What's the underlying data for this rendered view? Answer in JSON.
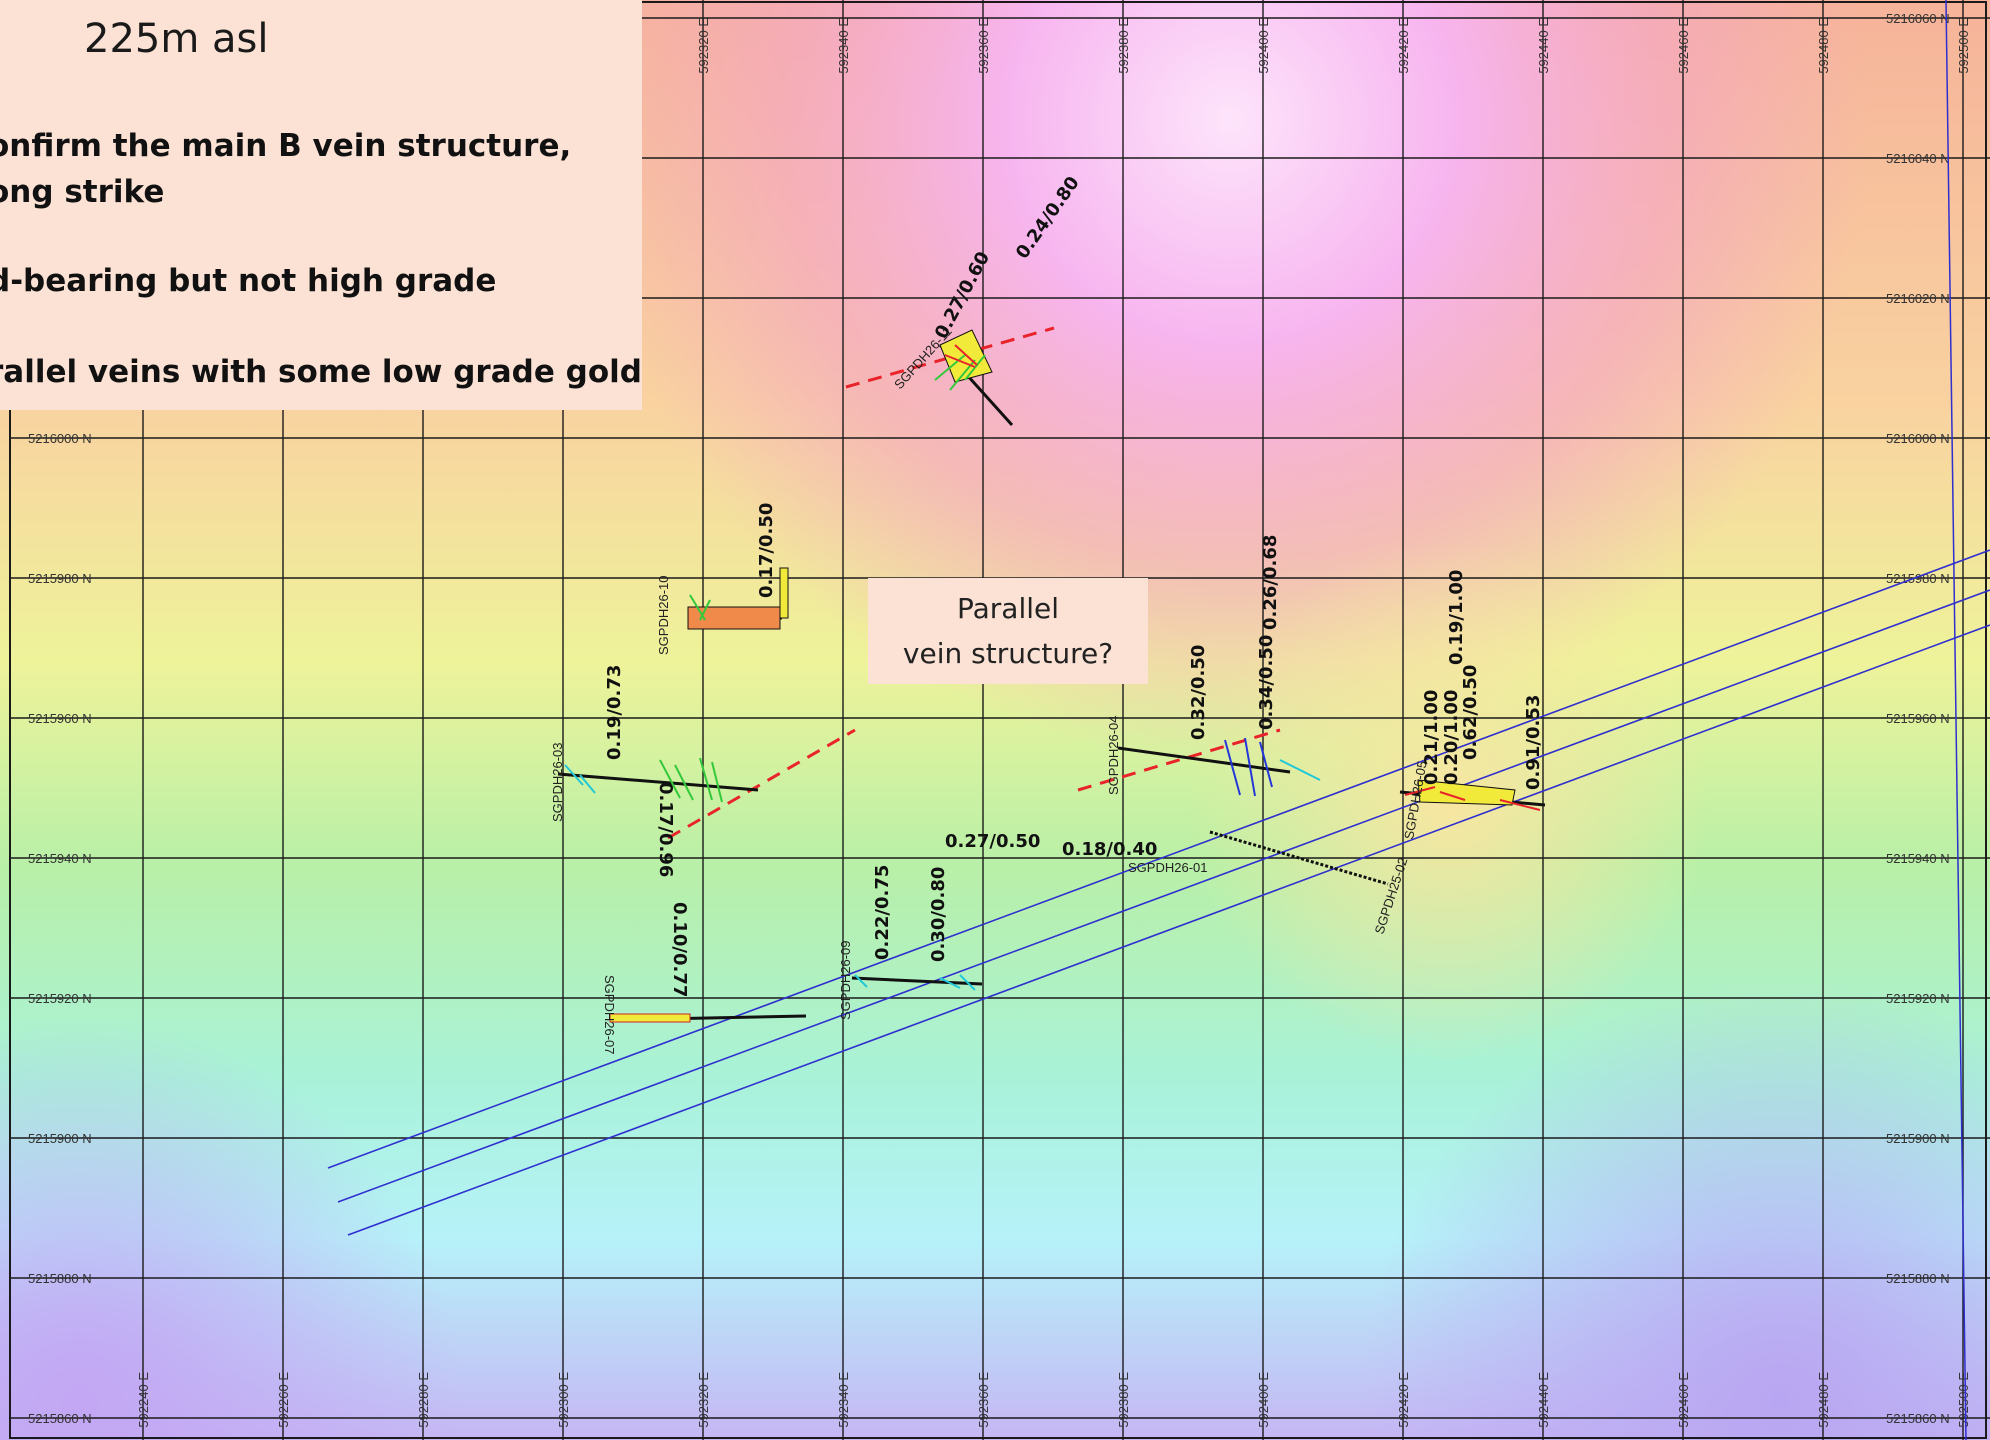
{
  "legend": {
    "elevation": "225m asl",
    "lines": [
      "onfirm the main B vein structure,",
      "ong strike",
      "d-bearing but not high grade",
      "rallel veins with some low grade gold"
    ]
  },
  "callout": {
    "line1": "Parallel",
    "line2": "vein structure?"
  },
  "map": {
    "easting_labels_top": [
      "592320 E",
      "592340 E",
      "592360 E",
      "592380 E",
      "592400 E",
      "592420 E",
      "592440 E",
      "592460 E",
      "592480 E",
      "592500 E"
    ],
    "easting_labels_bottom": [
      "592240 E",
      "592260 E",
      "592280 E",
      "592300 E",
      "592320 E",
      "592340 E",
      "592360 E",
      "592380 E",
      "592400 E",
      "592420 E",
      "592440 E",
      "592460 E",
      "592480 E",
      "592500 E"
    ],
    "northing_labels_left": [
      "5216000 N",
      "5215980 N",
      "5215960 N",
      "5215940 N",
      "5215920 N",
      "5215900 N",
      "5215880 N",
      "5215860 N"
    ],
    "northing_labels_right": [
      "5216060 N",
      "5216040 N",
      "5216020 N",
      "5216000 N",
      "5215980 N",
      "5215960 N",
      "5215940 N",
      "5215920 N",
      "5215900 N",
      "5215880 N",
      "5215860 N"
    ],
    "drillholes": [
      {
        "id": "SGPDH26-11",
        "label": "SGPDH26-11"
      },
      {
        "id": "SGPDH26-10",
        "label": "SGPDH26-10"
      },
      {
        "id": "SGPDH26-03",
        "label": "SGPDH26-03"
      },
      {
        "id": "SGPDH26-04",
        "label": "SGPDH26-04"
      },
      {
        "id": "SGPDH26-09",
        "label": "SGPDH26-09"
      },
      {
        "id": "SGPDH26-07",
        "label": "SGPDH26-07"
      },
      {
        "id": "SGPDH26-01",
        "label": "SGPDH26-01"
      },
      {
        "id": "SGPDH25-02",
        "label": "SGPDH25-02"
      },
      {
        "id": "SGPDH26-05",
        "label": "SGPDH26-05"
      }
    ],
    "intercepts": [
      "0.27/0.60",
      "0.24/0.80",
      "0.17/0.50",
      "0.19/0.73",
      "0.17/0.96",
      "0.10/0.77",
      "0.22/0.75",
      "0.30/0.80",
      "0.27/0.50",
      "0.18/0.40",
      "0.32/0.50",
      "0.34/0.50",
      "0.26/0.68",
      "0.19/1.00",
      "0.21/1.00",
      "0.20/1.00",
      "0.62/0.50",
      "0.91/0.53"
    ]
  }
}
